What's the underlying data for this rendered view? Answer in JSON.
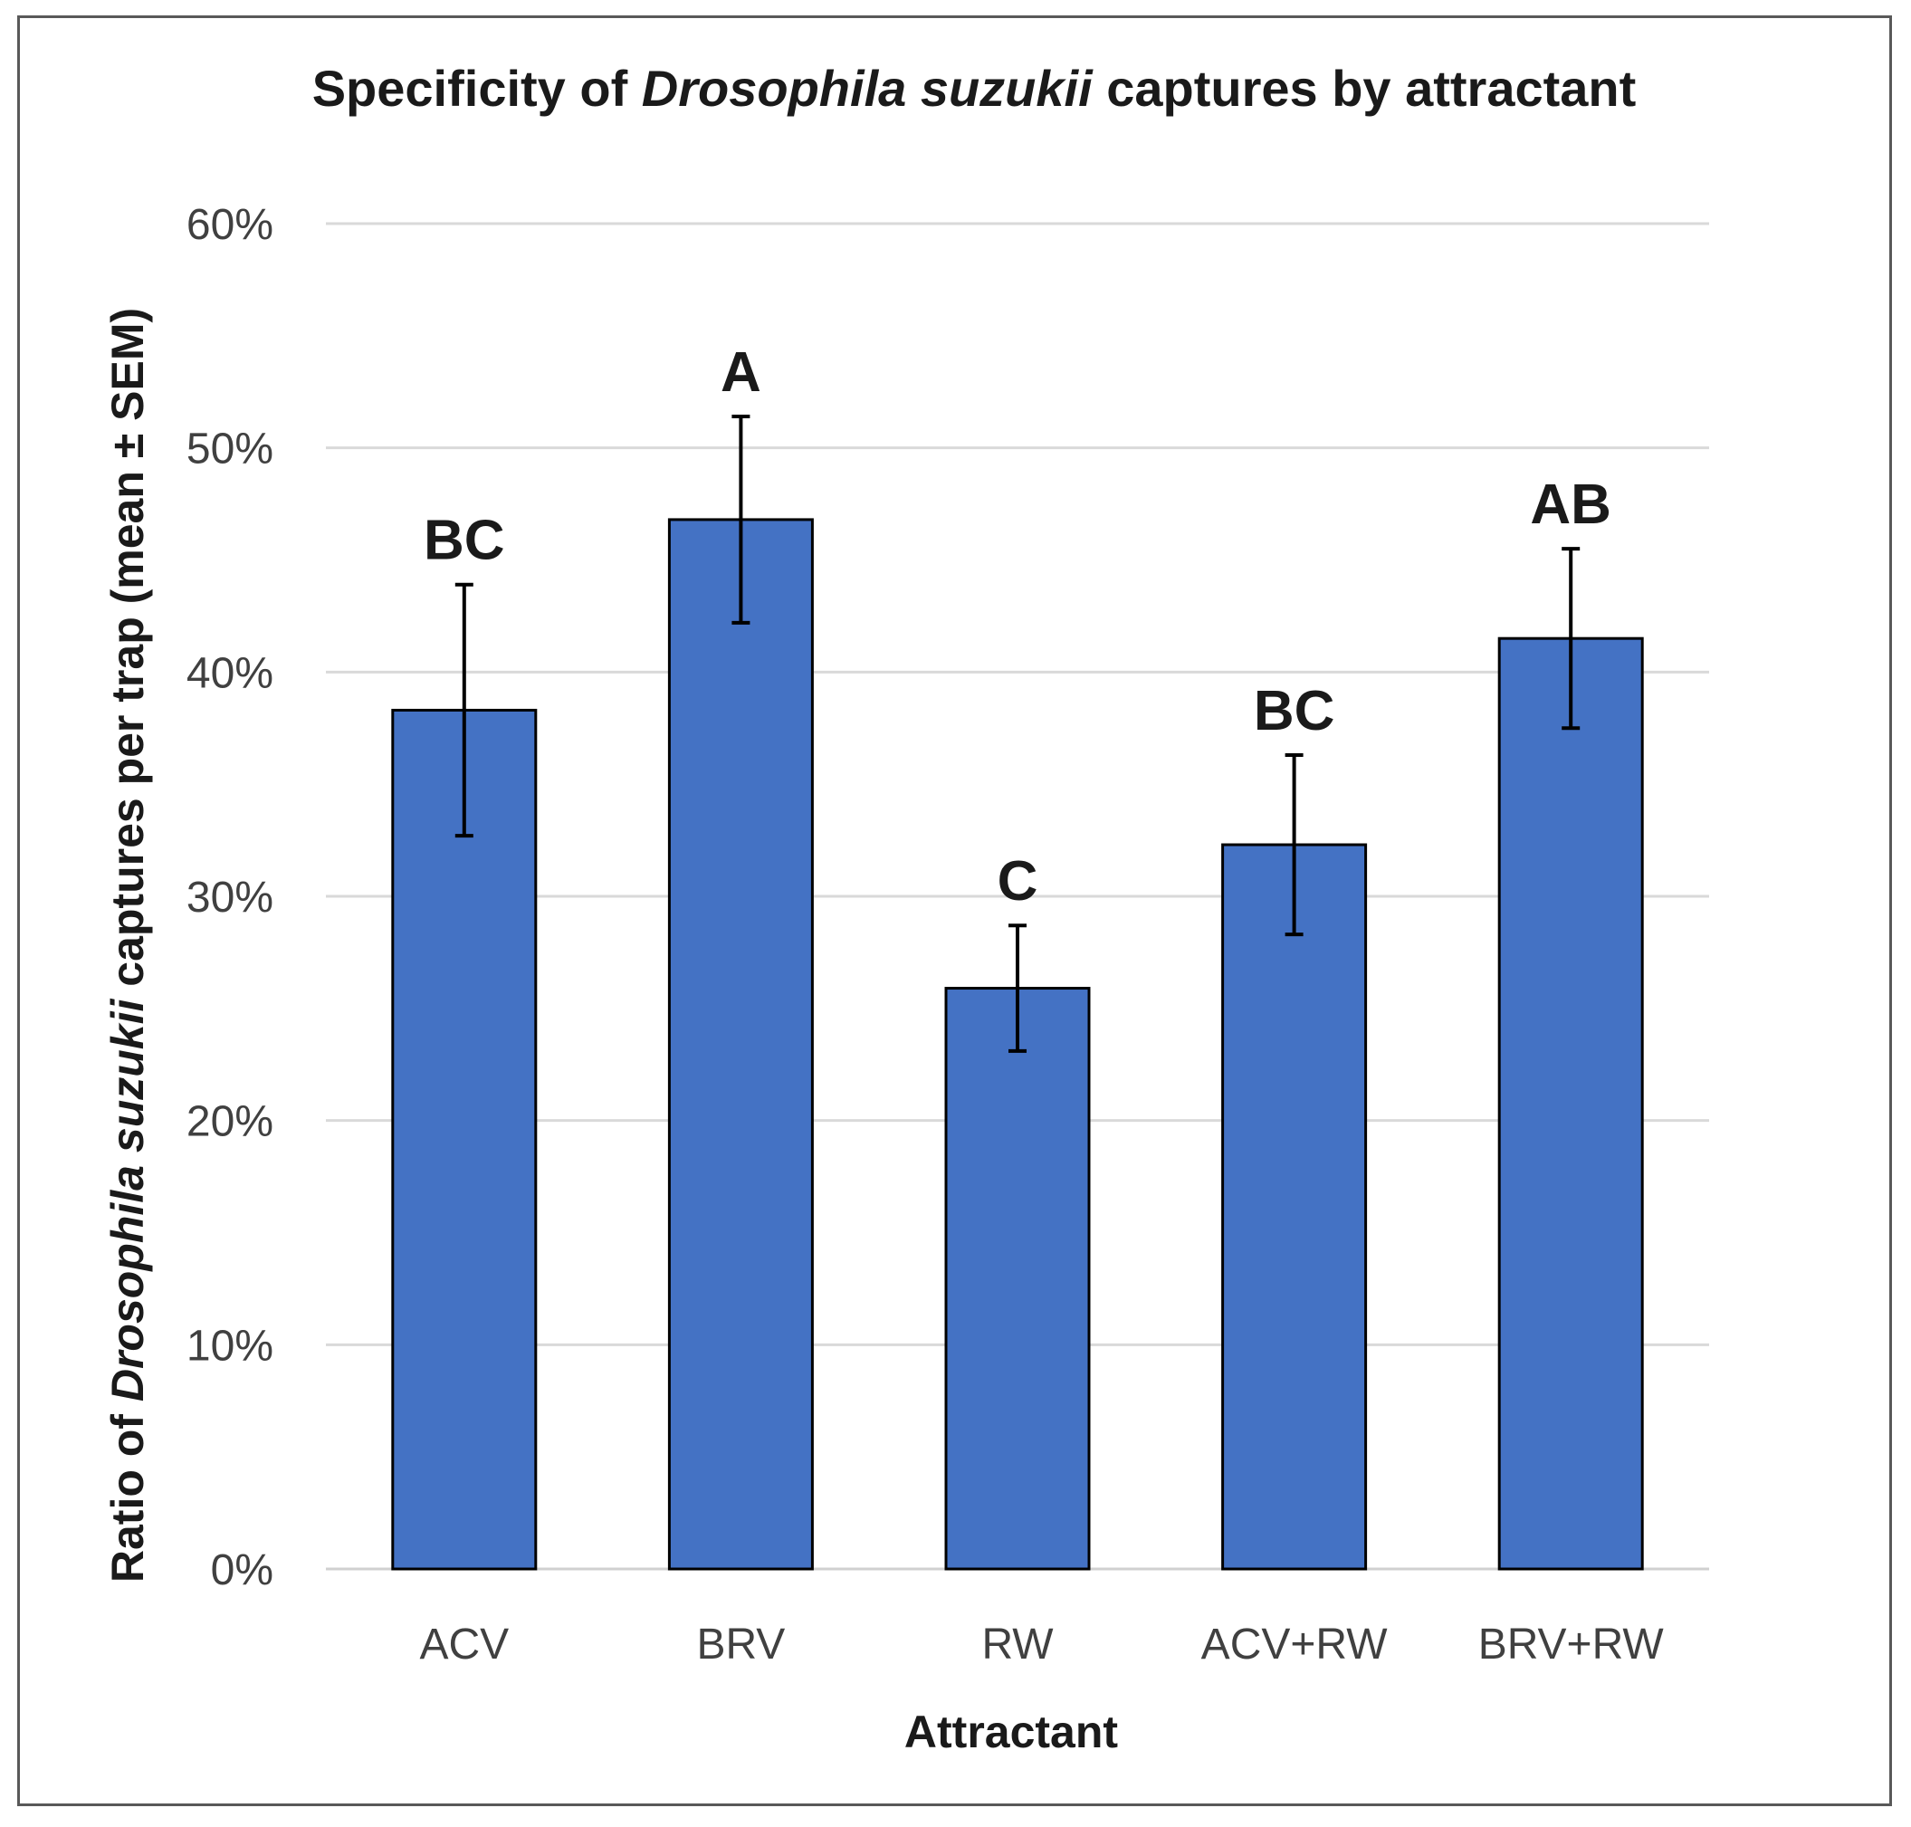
{
  "chart_data": {
    "type": "bar",
    "title_parts": {
      "prefix": "Specificity of ",
      "species": "Drosophila suzukii",
      "suffix": " captures by attractant"
    },
    "xlabel": "Attractant",
    "ylabel_parts": {
      "prefix": "Ratio of ",
      "species": "Drosophila suzukii",
      "suffix": " captures per trap  (mean ± SEM)"
    },
    "categories": [
      "ACV",
      "BRV",
      "RW",
      "ACV+RW",
      "BRV+RW"
    ],
    "values": [
      38.3,
      46.8,
      25.9,
      32.3,
      41.5
    ],
    "errors": [
      5.6,
      4.6,
      2.8,
      4.0,
      4.0
    ],
    "significance_labels": [
      "BC",
      "A",
      "C",
      "BC",
      "AB"
    ],
    "ylim": [
      0,
      60
    ],
    "yticks": [
      0,
      10,
      20,
      30,
      40,
      50,
      60
    ],
    "ytick_labels": [
      "0%",
      "10%",
      "20%",
      "30%",
      "40%",
      "50%",
      "60%"
    ],
    "grid": true,
    "bar_color": "#4472C4",
    "bar_edge_color": "#000000"
  }
}
